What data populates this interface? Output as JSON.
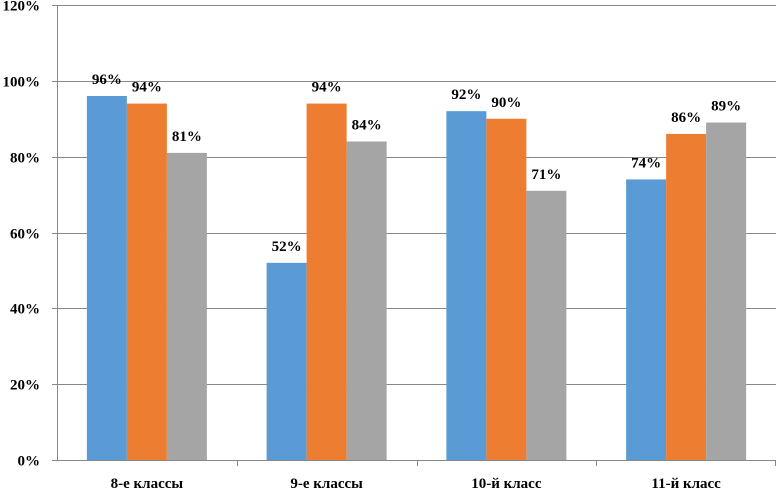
{
  "chart_data": {
    "type": "bar",
    "title": "",
    "xlabel": "",
    "ylabel": "",
    "categories": [
      "8-е классы",
      "9-е классы",
      "10-й класс",
      "11-й класс"
    ],
    "series": [
      {
        "values": [
          96,
          52,
          92,
          74
        ],
        "color": "#5B9BD5"
      },
      {
        "values": [
          94,
          94,
          90,
          86
        ],
        "color": "#ED7D31"
      },
      {
        "values": [
          81,
          84,
          71,
          89
        ],
        "color": "#A5A5A5"
      }
    ],
    "data_labels": [
      [
        "96%",
        "52%",
        "92%",
        "74%"
      ],
      [
        "94%",
        "94%",
        "90%",
        "86%"
      ],
      [
        "81%",
        "84%",
        "71%",
        "89%"
      ]
    ],
    "ylim": [
      0,
      120
    ],
    "y_ticks": [
      0,
      20,
      40,
      60,
      80,
      100,
      120
    ],
    "y_tick_labels": [
      "0%",
      "20%",
      "40%",
      "60%",
      "80%",
      "100%",
      "120%"
    ],
    "grid": true,
    "legend": "none"
  }
}
